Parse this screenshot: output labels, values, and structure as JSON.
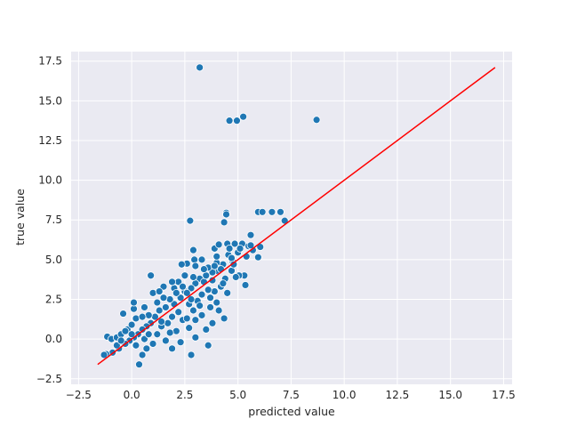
{
  "chart_data": {
    "type": "scatter",
    "title": "",
    "xlabel": "predicted value",
    "ylabel": "true value",
    "xlim": [
      -2.85,
      17.9
    ],
    "ylim": [
      -2.85,
      18.1
    ],
    "xticks": [
      -2.5,
      0.0,
      2.5,
      5.0,
      7.5,
      10.0,
      12.5,
      15.0,
      17.5
    ],
    "xtick_labels": [
      "−2.5",
      "0.0",
      "2.5",
      "5.0",
      "7.5",
      "10.0",
      "12.5",
      "15.0",
      "17.5"
    ],
    "yticks": [
      -2.5,
      0.0,
      2.5,
      5.0,
      7.5,
      10.0,
      12.5,
      15.0,
      17.5
    ],
    "ytick_labels": [
      "−2.5",
      "0.0",
      "2.5",
      "5.0",
      "7.5",
      "10.0",
      "12.5",
      "15.0",
      "17.5"
    ],
    "grid": true,
    "background_color": "#eaeaf2",
    "point_color": "#1f77b4",
    "line_color": "#ff0000",
    "reference_line": {
      "x": [
        -1.6,
        17.1
      ],
      "y": [
        -1.6,
        17.1
      ]
    },
    "points": [
      [
        3.2,
        17.1
      ],
      [
        8.7,
        13.8
      ],
      [
        5.25,
        14.0
      ],
      [
        4.95,
        13.75
      ],
      [
        4.6,
        13.75
      ],
      [
        2.75,
        7.45
      ],
      [
        4.45,
        7.95
      ],
      [
        4.45,
        7.85
      ],
      [
        4.35,
        7.35
      ],
      [
        5.95,
        8.0
      ],
      [
        6.15,
        8.0
      ],
      [
        6.6,
        8.0
      ],
      [
        7.0,
        8.0
      ],
      [
        7.2,
        7.45
      ],
      [
        5.6,
        6.55
      ],
      [
        6.05,
        5.8
      ],
      [
        5.7,
        5.6
      ],
      [
        5.95,
        5.15
      ],
      [
        5.3,
        4.0
      ],
      [
        5.05,
        4.0
      ],
      [
        5.35,
        3.4
      ],
      [
        4.55,
        5.3
      ],
      [
        4.75,
        4.9
      ],
      [
        4.3,
        4.7
      ],
      [
        4.0,
        4.3
      ],
      [
        4.2,
        4.4
      ],
      [
        3.8,
        4.2
      ],
      [
        2.9,
        5.6
      ],
      [
        2.95,
        5.0
      ],
      [
        2.6,
        4.75
      ],
      [
        2.35,
        4.7
      ],
      [
        3.3,
        5.0
      ],
      [
        3.9,
        5.7
      ],
      [
        4.1,
        5.95
      ],
      [
        4.5,
        6.0
      ],
      [
        4.85,
        6.0
      ],
      [
        5.2,
        6.0
      ],
      [
        5.5,
        5.85
      ],
      [
        5.0,
        5.45
      ],
      [
        4.7,
        5.1
      ],
      [
        4.0,
        4.8
      ],
      [
        3.6,
        4.5
      ],
      [
        3.2,
        3.8
      ],
      [
        3.0,
        3.5
      ],
      [
        2.8,
        3.2
      ],
      [
        2.5,
        3.0
      ],
      [
        2.3,
        2.6
      ],
      [
        2.0,
        2.2
      ],
      [
        1.8,
        2.5
      ],
      [
        1.6,
        2.0
      ],
      [
        1.3,
        1.8
      ],
      [
        1.1,
        1.4
      ],
      [
        0.9,
        1.0
      ],
      [
        0.7,
        0.8
      ],
      [
        0.5,
        0.6
      ],
      [
        0.3,
        0.3
      ],
      [
        0.1,
        0.1
      ],
      [
        -0.1,
        -0.1
      ],
      [
        -0.3,
        -0.3
      ],
      [
        -0.6,
        -0.6
      ],
      [
        -0.9,
        -0.85
      ],
      [
        -1.2,
        -0.95
      ],
      [
        -1.3,
        -1.0
      ],
      [
        -1.15,
        0.15
      ],
      [
        -0.95,
        0.0
      ],
      [
        -0.7,
        0.1
      ],
      [
        -0.5,
        0.3
      ],
      [
        -0.4,
        1.6
      ],
      [
        -0.2,
        0.6
      ],
      [
        0.0,
        0.9
      ],
      [
        0.1,
        1.9
      ],
      [
        0.1,
        2.3
      ],
      [
        0.2,
        1.3
      ],
      [
        0.35,
        -1.6
      ],
      [
        0.5,
        -1.0
      ],
      [
        0.6,
        0.0
      ],
      [
        0.8,
        1.5
      ],
      [
        0.9,
        4.0
      ],
      [
        1.0,
        2.9
      ],
      [
        1.2,
        0.3
      ],
      [
        1.4,
        0.8
      ],
      [
        1.5,
        3.3
      ],
      [
        1.7,
        1.0
      ],
      [
        1.9,
        -0.6
      ],
      [
        2.1,
        0.5
      ],
      [
        2.2,
        3.6
      ],
      [
        2.4,
        1.2
      ],
      [
        2.6,
        2.9
      ],
      [
        2.7,
        0.7
      ],
      [
        2.8,
        -1.0
      ],
      [
        2.9,
        1.8
      ],
      [
        3.0,
        0.1
      ],
      [
        3.1,
        2.4
      ],
      [
        3.3,
        1.5
      ],
      [
        3.4,
        3.6
      ],
      [
        3.5,
        0.6
      ],
      [
        3.6,
        -0.4
      ],
      [
        3.7,
        2.0
      ],
      [
        3.8,
        1.0
      ],
      [
        3.9,
        3.0
      ],
      [
        4.0,
        2.3
      ],
      [
        4.1,
        1.8
      ],
      [
        4.2,
        3.3
      ],
      [
        4.35,
        1.3
      ],
      [
        4.5,
        2.9
      ],
      [
        4.4,
        3.8
      ],
      [
        4.7,
        4.3
      ],
      [
        3.5,
        4.0
      ],
      [
        3.0,
        4.6
      ],
      [
        2.5,
        4.0
      ],
      [
        2.0,
        3.2
      ],
      [
        1.5,
        2.6
      ],
      [
        1.2,
        2.3
      ],
      [
        0.8,
        0.3
      ],
      [
        0.5,
        1.4
      ],
      [
        0.2,
        -0.4
      ],
      [
        -0.3,
        0.5
      ],
      [
        -0.7,
        -0.4
      ],
      [
        3.3,
        2.8
      ],
      [
        3.6,
        3.1
      ],
      [
        2.2,
        1.7
      ],
      [
        1.8,
        0.4
      ],
      [
        2.6,
        1.3
      ],
      [
        3.9,
        4.6
      ],
      [
        4.6,
        5.7
      ],
      [
        5.1,
        5.7
      ],
      [
        5.4,
        5.2
      ],
      [
        4.9,
        3.9
      ],
      [
        4.3,
        3.5
      ],
      [
        3.7,
        2.6
      ],
      [
        3.2,
        2.1
      ],
      [
        2.7,
        2.2
      ],
      [
        2.3,
        -0.2
      ],
      [
        1.6,
        -0.1
      ],
      [
        1.0,
        -0.3
      ],
      [
        0.6,
        2.0
      ],
      [
        1.3,
        3.0
      ],
      [
        1.9,
        3.6
      ],
      [
        2.4,
        3.3
      ],
      [
        2.9,
        3.9
      ],
      [
        3.4,
        4.4
      ],
      [
        0.0,
        0.3
      ],
      [
        -0.5,
        -0.1
      ],
      [
        2.8,
        2.5
      ],
      [
        3.8,
        3.7
      ],
      [
        4.8,
        4.7
      ],
      [
        5.6,
        5.9
      ],
      [
        3.0,
        1.2
      ],
      [
        1.4,
        1.1
      ],
      [
        0.7,
        -0.6
      ],
      [
        1.9,
        1.4
      ],
      [
        2.1,
        2.9
      ],
      [
        4.0,
        5.2
      ]
    ]
  }
}
